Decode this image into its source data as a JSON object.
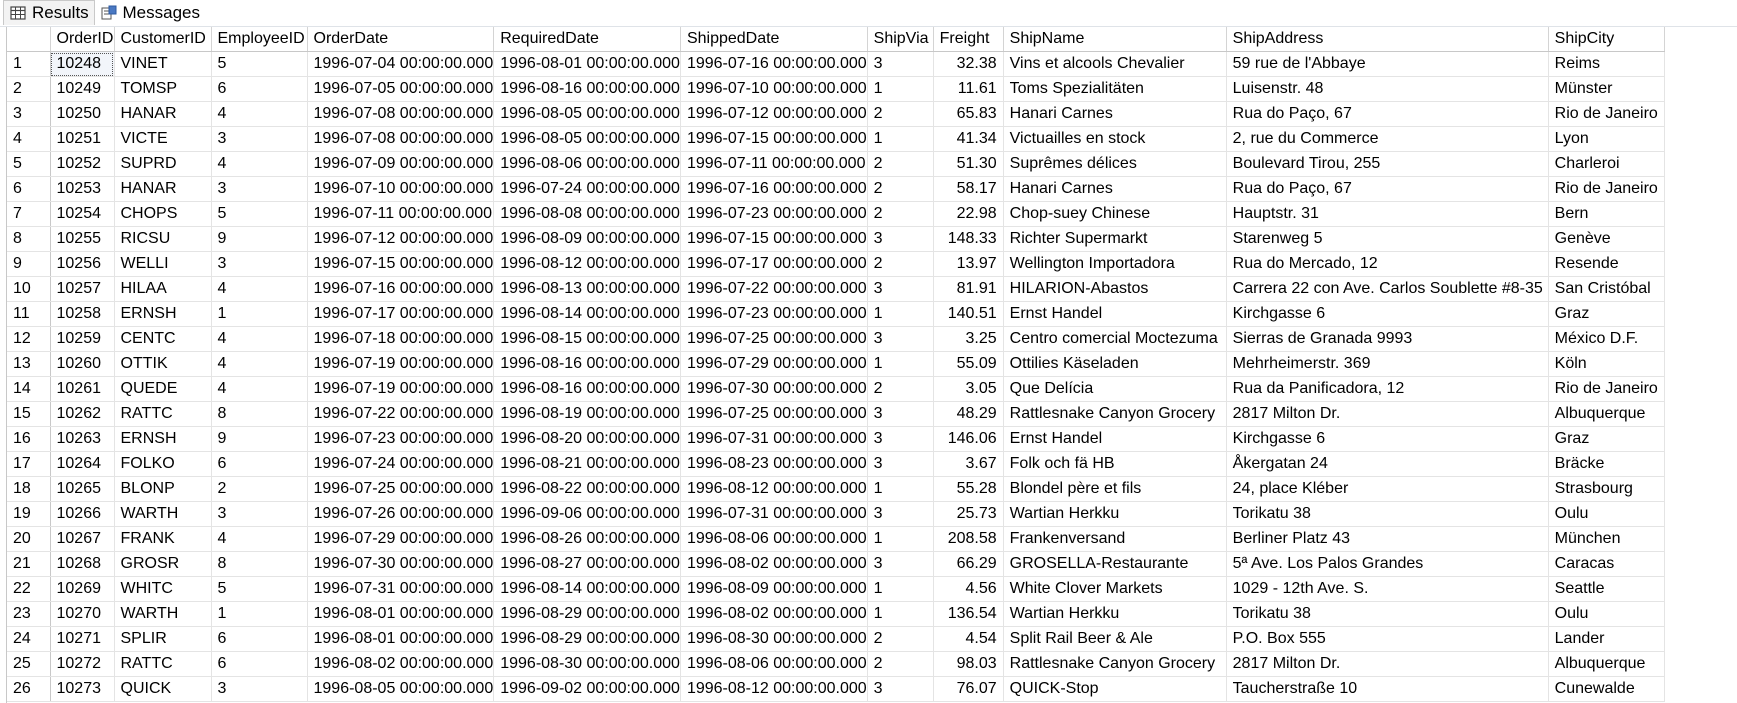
{
  "tabs": {
    "results_label": "Results",
    "messages_label": "Messages"
  },
  "columns": [
    "OrderID",
    "CustomerID",
    "EmployeeID",
    "OrderDate",
    "RequiredDate",
    "ShippedDate",
    "ShipVia",
    "Freight",
    "ShipName",
    "ShipAddress",
    "ShipCity"
  ],
  "rows": [
    [
      "1",
      "10248",
      "VINET",
      "5",
      "1996-07-04 00:00:00.000",
      "1996-08-01 00:00:00.000",
      "1996-07-16 00:00:00.000",
      "3",
      "32.38",
      "Vins et alcools Chevalier",
      "59 rue de l'Abbaye",
      "Reims"
    ],
    [
      "2",
      "10249",
      "TOMSP",
      "6",
      "1996-07-05 00:00:00.000",
      "1996-08-16 00:00:00.000",
      "1996-07-10 00:00:00.000",
      "1",
      "11.61",
      "Toms Spezialitäten",
      "Luisenstr. 48",
      "Münster"
    ],
    [
      "3",
      "10250",
      "HANAR",
      "4",
      "1996-07-08 00:00:00.000",
      "1996-08-05 00:00:00.000",
      "1996-07-12 00:00:00.000",
      "2",
      "65.83",
      "Hanari Carnes",
      "Rua do Paço, 67",
      "Rio de Janeiro"
    ],
    [
      "4",
      "10251",
      "VICTE",
      "3",
      "1996-07-08 00:00:00.000",
      "1996-08-05 00:00:00.000",
      "1996-07-15 00:00:00.000",
      "1",
      "41.34",
      "Victuailles en stock",
      "2, rue du Commerce",
      "Lyon"
    ],
    [
      "5",
      "10252",
      "SUPRD",
      "4",
      "1996-07-09 00:00:00.000",
      "1996-08-06 00:00:00.000",
      "1996-07-11 00:00:00.000",
      "2",
      "51.30",
      "Suprêmes délices",
      "Boulevard Tirou, 255",
      "Charleroi"
    ],
    [
      "6",
      "10253",
      "HANAR",
      "3",
      "1996-07-10 00:00:00.000",
      "1996-07-24 00:00:00.000",
      "1996-07-16 00:00:00.000",
      "2",
      "58.17",
      "Hanari Carnes",
      "Rua do Paço, 67",
      "Rio de Janeiro"
    ],
    [
      "7",
      "10254",
      "CHOPS",
      "5",
      "1996-07-11 00:00:00.000",
      "1996-08-08 00:00:00.000",
      "1996-07-23 00:00:00.000",
      "2",
      "22.98",
      "Chop-suey Chinese",
      "Hauptstr. 31",
      "Bern"
    ],
    [
      "8",
      "10255",
      "RICSU",
      "9",
      "1996-07-12 00:00:00.000",
      "1996-08-09 00:00:00.000",
      "1996-07-15 00:00:00.000",
      "3",
      "148.33",
      "Richter Supermarkt",
      "Starenweg 5",
      "Genève"
    ],
    [
      "9",
      "10256",
      "WELLI",
      "3",
      "1996-07-15 00:00:00.000",
      "1996-08-12 00:00:00.000",
      "1996-07-17 00:00:00.000",
      "2",
      "13.97",
      "Wellington Importadora",
      "Rua do Mercado, 12",
      "Resende"
    ],
    [
      "10",
      "10257",
      "HILAA",
      "4",
      "1996-07-16 00:00:00.000",
      "1996-08-13 00:00:00.000",
      "1996-07-22 00:00:00.000",
      "3",
      "81.91",
      "HILARION-Abastos",
      "Carrera 22 con Ave. Carlos Soublette #8-35",
      "San Cristóbal"
    ],
    [
      "11",
      "10258",
      "ERNSH",
      "1",
      "1996-07-17 00:00:00.000",
      "1996-08-14 00:00:00.000",
      "1996-07-23 00:00:00.000",
      "1",
      "140.51",
      "Ernst Handel",
      "Kirchgasse 6",
      "Graz"
    ],
    [
      "12",
      "10259",
      "CENTC",
      "4",
      "1996-07-18 00:00:00.000",
      "1996-08-15 00:00:00.000",
      "1996-07-25 00:00:00.000",
      "3",
      "3.25",
      "Centro comercial Moctezuma",
      "Sierras de Granada 9993",
      "México D.F."
    ],
    [
      "13",
      "10260",
      "OTTIK",
      "4",
      "1996-07-19 00:00:00.000",
      "1996-08-16 00:00:00.000",
      "1996-07-29 00:00:00.000",
      "1",
      "55.09",
      "Ottilies Käseladen",
      "Mehrheimerstr. 369",
      "Köln"
    ],
    [
      "14",
      "10261",
      "QUEDE",
      "4",
      "1996-07-19 00:00:00.000",
      "1996-08-16 00:00:00.000",
      "1996-07-30 00:00:00.000",
      "2",
      "3.05",
      "Que Delícia",
      "Rua da Panificadora, 12",
      "Rio de Janeiro"
    ],
    [
      "15",
      "10262",
      "RATTC",
      "8",
      "1996-07-22 00:00:00.000",
      "1996-08-19 00:00:00.000",
      "1996-07-25 00:00:00.000",
      "3",
      "48.29",
      "Rattlesnake Canyon Grocery",
      "2817 Milton Dr.",
      "Albuquerque"
    ],
    [
      "16",
      "10263",
      "ERNSH",
      "9",
      "1996-07-23 00:00:00.000",
      "1996-08-20 00:00:00.000",
      "1996-07-31 00:00:00.000",
      "3",
      "146.06",
      "Ernst Handel",
      "Kirchgasse 6",
      "Graz"
    ],
    [
      "17",
      "10264",
      "FOLKO",
      "6",
      "1996-07-24 00:00:00.000",
      "1996-08-21 00:00:00.000",
      "1996-08-23 00:00:00.000",
      "3",
      "3.67",
      "Folk och fä HB",
      "Åkergatan 24",
      "Bräcke"
    ],
    [
      "18",
      "10265",
      "BLONP",
      "2",
      "1996-07-25 00:00:00.000",
      "1996-08-22 00:00:00.000",
      "1996-08-12 00:00:00.000",
      "1",
      "55.28",
      "Blondel père et fils",
      "24, place Kléber",
      "Strasbourg"
    ],
    [
      "19",
      "10266",
      "WARTH",
      "3",
      "1996-07-26 00:00:00.000",
      "1996-09-06 00:00:00.000",
      "1996-07-31 00:00:00.000",
      "3",
      "25.73",
      "Wartian Herkku",
      "Torikatu 38",
      "Oulu"
    ],
    [
      "20",
      "10267",
      "FRANK",
      "4",
      "1996-07-29 00:00:00.000",
      "1996-08-26 00:00:00.000",
      "1996-08-06 00:00:00.000",
      "1",
      "208.58",
      "Frankenversand",
      "Berliner Platz 43",
      "München"
    ],
    [
      "21",
      "10268",
      "GROSR",
      "8",
      "1996-07-30 00:00:00.000",
      "1996-08-27 00:00:00.000",
      "1996-08-02 00:00:00.000",
      "3",
      "66.29",
      "GROSELLA-Restaurante",
      "5ª Ave. Los Palos Grandes",
      "Caracas"
    ],
    [
      "22",
      "10269",
      "WHITC",
      "5",
      "1996-07-31 00:00:00.000",
      "1996-08-14 00:00:00.000",
      "1996-08-09 00:00:00.000",
      "1",
      "4.56",
      "White Clover Markets",
      "1029 - 12th Ave. S.",
      "Seattle"
    ],
    [
      "23",
      "10270",
      "WARTH",
      "1",
      "1996-08-01 00:00:00.000",
      "1996-08-29 00:00:00.000",
      "1996-08-02 00:00:00.000",
      "1",
      "136.54",
      "Wartian Herkku",
      "Torikatu 38",
      "Oulu"
    ],
    [
      "24",
      "10271",
      "SPLIR",
      "6",
      "1996-08-01 00:00:00.000",
      "1996-08-29 00:00:00.000",
      "1996-08-30 00:00:00.000",
      "2",
      "4.54",
      "Split Rail Beer & Ale",
      "P.O. Box 555",
      "Lander"
    ],
    [
      "25",
      "10272",
      "RATTC",
      "6",
      "1996-08-02 00:00:00.000",
      "1996-08-30 00:00:00.000",
      "1996-08-06 00:00:00.000",
      "2",
      "98.03",
      "Rattlesnake Canyon Grocery",
      "2817 Milton Dr.",
      "Albuquerque"
    ],
    [
      "26",
      "10273",
      "QUICK",
      "3",
      "1996-08-05 00:00:00.000",
      "1996-09-02 00:00:00.000",
      "1996-08-12 00:00:00.000",
      "3",
      "76.07",
      "QUICK-Stop",
      "Taucherstraße 10",
      "Cunewalde"
    ]
  ]
}
